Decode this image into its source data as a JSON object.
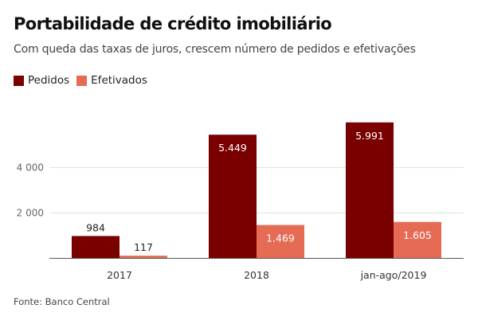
{
  "title": "Portabilidade de crédito imobiliário",
  "subtitle": "Com queda das taxas de juros, crescem número de pedidos e efetivações",
  "source": "Fonte: Banco Central",
  "chart_data": {
    "type": "bar",
    "categories": [
      "2017",
      "2018",
      "jan-ago/2019"
    ],
    "series": [
      {
        "name": "Pedidos",
        "color": "#7a0000",
        "values": [
          984,
          5449,
          5991
        ],
        "labels": [
          "984",
          "5.449",
          "5.991"
        ]
      },
      {
        "name": "Efetivados",
        "color": "#e66b55",
        "values": [
          117,
          1469,
          1605
        ],
        "labels": [
          "117",
          "1.469",
          "1.605"
        ]
      }
    ],
    "yticks": [
      {
        "value": 2000,
        "label": "2 000"
      },
      {
        "value": 4000,
        "label": "4 000"
      }
    ],
    "ylim": [
      0,
      6000
    ],
    "grid": true,
    "legend": "top-left"
  }
}
